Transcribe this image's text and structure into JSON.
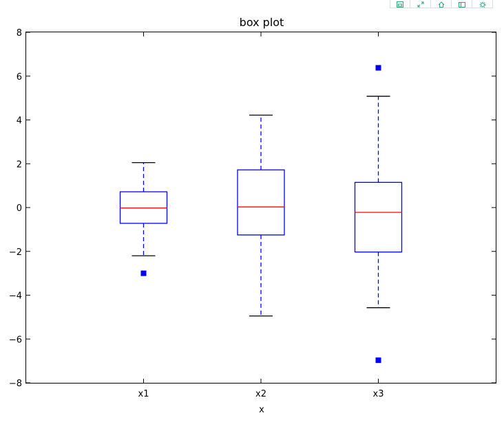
{
  "toolbar": {
    "buttons": [
      {
        "icon": "save-icon"
      },
      {
        "icon": "expand-icon"
      },
      {
        "icon": "home-icon"
      },
      {
        "icon": "zoom-box-icon"
      },
      {
        "icon": "settings-gear-icon"
      }
    ],
    "accent": "#2ea37a"
  },
  "chart_data": {
    "type": "box",
    "title": "box plot",
    "xlabel": "x",
    "ylabel": "",
    "ylim": [
      -8,
      8
    ],
    "yticks": [
      -8,
      -6,
      -4,
      -2,
      0,
      2,
      4,
      6,
      8
    ],
    "categories": [
      "x1",
      "x2",
      "x3"
    ],
    "boxes": [
      {
        "category": "x1",
        "whisker_low": -2.2,
        "q1": -0.72,
        "median": -0.02,
        "q3": 0.72,
        "whisker_high": 2.05,
        "outliers": [
          -3.0
        ]
      },
      {
        "category": "x2",
        "whisker_low": -4.95,
        "q1": -1.25,
        "median": 0.03,
        "q3": 1.72,
        "whisker_high": 4.22,
        "outliers": []
      },
      {
        "category": "x3",
        "whisker_low": -4.57,
        "q1": -2.03,
        "median": -0.22,
        "q3": 1.15,
        "whisker_high": 5.08,
        "outliers": [
          6.38,
          -6.97
        ]
      }
    ],
    "grid": false,
    "colors": {
      "box": "#0000ff",
      "median": "#ff0000",
      "whisker": "#0000ff",
      "cap": "#000000",
      "outlier": "#0000ff"
    }
  }
}
